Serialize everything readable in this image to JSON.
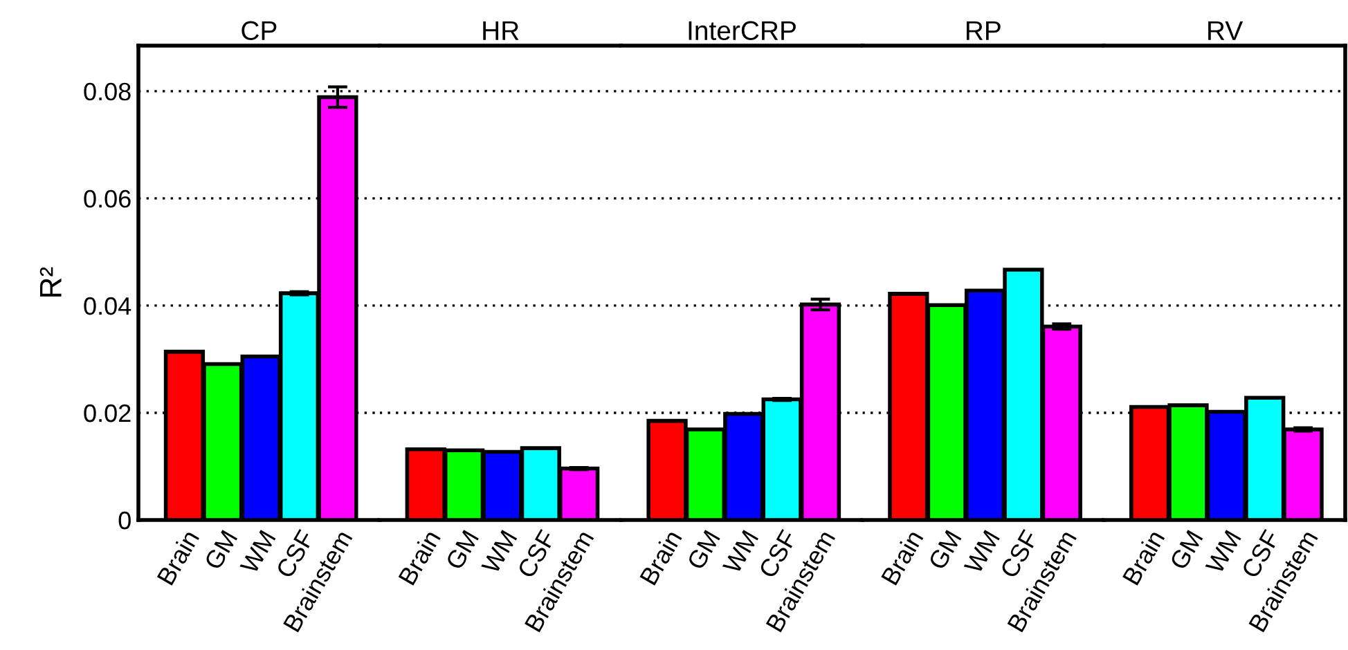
{
  "chart_data": [
    {
      "type": "bar",
      "title": "CP",
      "ylabel": "R²",
      "categories": [
        "Brain",
        "GM",
        "WM",
        "CSF",
        "Brainstem"
      ],
      "values": [
        0.0314,
        0.0291,
        0.0305,
        0.0423,
        0.0789
      ],
      "errors": [
        null,
        null,
        null,
        0.0003,
        0.0019
      ],
      "colors": [
        "#ff0000",
        "#00ff00",
        "#0000ff",
        "#00ffff",
        "#ff00ff"
      ],
      "ylim": [
        0,
        0.0885
      ],
      "yticks": [
        0,
        0.02,
        0.04,
        0.06,
        0.08
      ],
      "grid": "y"
    },
    {
      "type": "bar",
      "title": "HR",
      "categories": [
        "Brain",
        "GM",
        "WM",
        "CSF",
        "Brainstem"
      ],
      "values": [
        0.0132,
        0.013,
        0.0127,
        0.0134,
        0.0096
      ],
      "errors": [
        null,
        null,
        null,
        null,
        0.0002
      ],
      "colors": [
        "#ff0000",
        "#00ff00",
        "#0000ff",
        "#00ffff",
        "#ff00ff"
      ],
      "ylim": [
        0,
        0.0885
      ],
      "yticks": [
        0,
        0.02,
        0.04,
        0.06,
        0.08
      ],
      "grid": "y",
      "tick_labels": "x"
    },
    {
      "type": "bar",
      "title": "InterCRP",
      "categories": [
        "Brain",
        "GM",
        "WM",
        "CSF",
        "Brainstem"
      ],
      "values": [
        0.0185,
        0.0169,
        0.0198,
        0.0225,
        0.0402
      ],
      "errors": [
        null,
        null,
        null,
        0.0002,
        0.001
      ],
      "colors": [
        "#ff0000",
        "#00ff00",
        "#0000ff",
        "#00ffff",
        "#ff00ff"
      ],
      "ylim": [
        0,
        0.0885
      ],
      "yticks": [
        0,
        0.02,
        0.04,
        0.06,
        0.08
      ],
      "grid": "y",
      "tick_labels": "x"
    },
    {
      "type": "bar",
      "title": "RP",
      "categories": [
        "Brain",
        "GM",
        "WM",
        "CSF",
        "Brainstem"
      ],
      "values": [
        0.0422,
        0.0401,
        0.0428,
        0.0467,
        0.0361
      ],
      "errors": [
        null,
        null,
        null,
        null,
        0.0005
      ],
      "colors": [
        "#ff0000",
        "#00ff00",
        "#0000ff",
        "#00ffff",
        "#ff00ff"
      ],
      "ylim": [
        0,
        0.0885
      ],
      "yticks": [
        0,
        0.02,
        0.04,
        0.06,
        0.08
      ],
      "grid": "y",
      "tick_labels": "x"
    },
    {
      "type": "bar",
      "title": "RV",
      "categories": [
        "Brain",
        "GM",
        "WM",
        "CSF",
        "Brainstem"
      ],
      "values": [
        0.0211,
        0.0214,
        0.0202,
        0.0228,
        0.0169
      ],
      "errors": [
        null,
        null,
        null,
        null,
        0.0003
      ],
      "colors": [
        "#ff0000",
        "#00ff00",
        "#0000ff",
        "#00ffff",
        "#ff00ff"
      ],
      "ylim": [
        0,
        0.0885
      ],
      "yticks": [
        0,
        0.02,
        0.04,
        0.06,
        0.08
      ],
      "grid": "y",
      "tick_labels": "x"
    }
  ]
}
